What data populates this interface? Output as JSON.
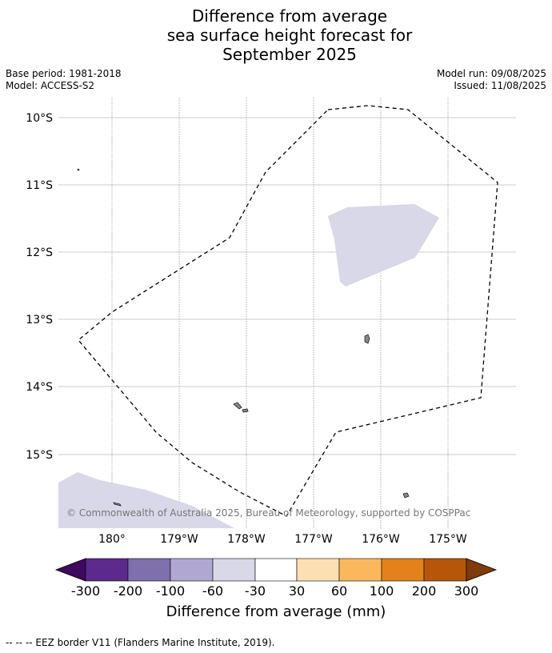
{
  "title": {
    "line1": "Difference from average",
    "line2": "sea surface height forecast for",
    "line3": "September 2025"
  },
  "meta": {
    "base_period": "Base period: 1981-2018",
    "model": "Model: ACCESS-S2",
    "model_run": "Model run: 09/08/2025",
    "issued": "Issued: 11/08/2025"
  },
  "map": {
    "lat_labels": [
      "10°S",
      "11°S",
      "12°S",
      "13°S",
      "14°S",
      "15°S"
    ],
    "lon_labels": [
      "180°",
      "179°W",
      "178°W",
      "177°W",
      "176°W",
      "175°W"
    ],
    "copyright": "© Commonwealth of Australia 2025, Bureau of Meteorology, supported by COSPPac",
    "anomaly_fill_color": "#d8d8e8",
    "eez_line_color": "#000000",
    "land_color": "#888888"
  },
  "colorbar": {
    "ticks": [
      "-300",
      "-200",
      "-100",
      "-60",
      "-30",
      "30",
      "60",
      "100",
      "200",
      "300"
    ],
    "colors": [
      "#3f0a5e",
      "#5c2a8c",
      "#7f6fad",
      "#b0a8d2",
      "#d8d8e8",
      "#ffffff",
      "#fddfb4",
      "#fbb75e",
      "#e3821a",
      "#b55608",
      "#7f3b08"
    ],
    "label": "Difference from average (mm)"
  },
  "footer": "--  --  -- EEZ border V11 (Flanders Marine Institute, 2019)."
}
